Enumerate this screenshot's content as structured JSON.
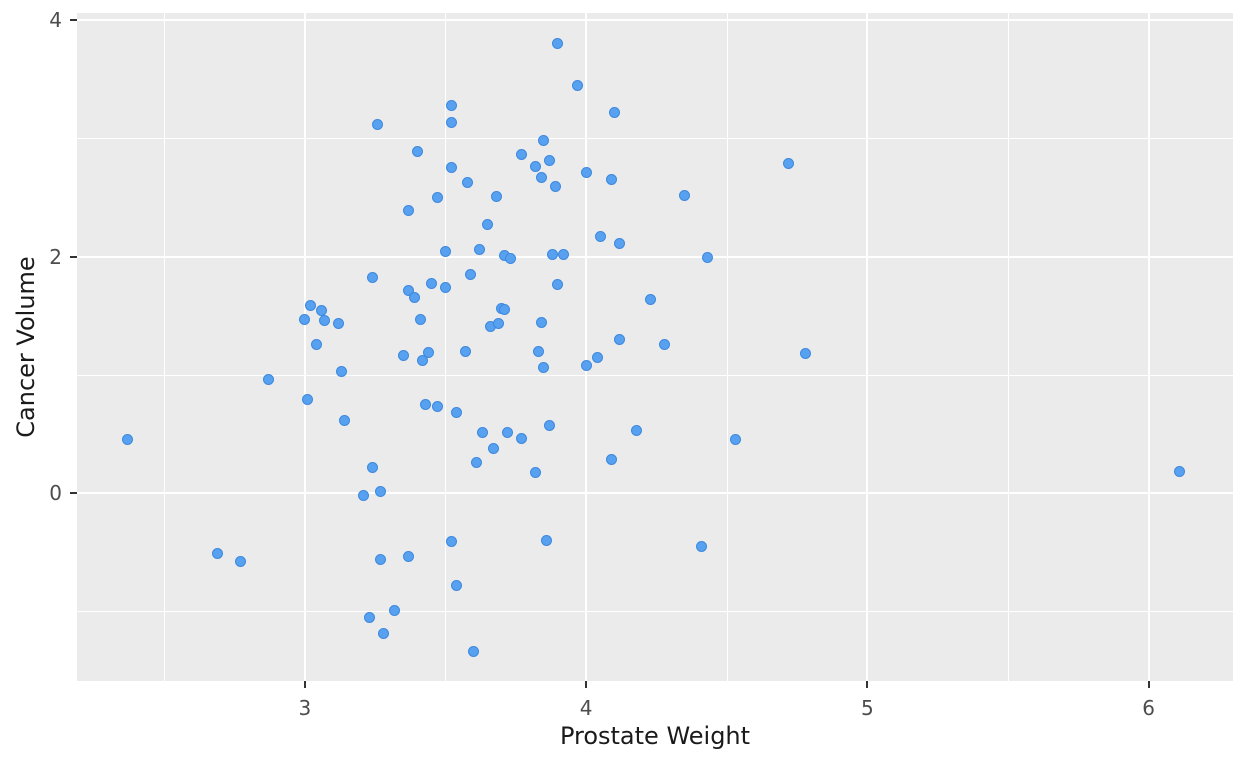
{
  "figure": {
    "xlabel": "Prostate Weight",
    "ylabel": "Cancer Volume"
  },
  "chart_data": {
    "type": "scatter",
    "title": "",
    "xlabel": "Prostate Weight",
    "ylabel": "Cancer Volume",
    "xlim": [
      2.19,
      6.3
    ],
    "ylim": [
      -1.59,
      4.06
    ],
    "x_major_ticks": [
      3,
      4,
      5,
      6
    ],
    "y_major_ticks": [
      0,
      2,
      4
    ],
    "x_minor_ticks": [
      2.5,
      3.5,
      4.5,
      5.5
    ],
    "y_minor_ticks": [
      -1,
      1,
      3
    ],
    "grid": true,
    "legend": false,
    "style": {
      "panel_bg": "#ebebeb",
      "grid_color": "#ffffff",
      "point_fill": "#57a1f0",
      "point_edge": "#3d88dd",
      "tick_label_color": "#4d4d4d",
      "axis_label_color": "#1a1a1a"
    },
    "points": [
      [
        3.26,
        3.12
      ],
      [
        3.9,
        3.8
      ],
      [
        3.97,
        3.45
      ],
      [
        3.52,
        3.28
      ],
      [
        4.1,
        3.22
      ],
      [
        3.52,
        3.13
      ],
      [
        3.85,
        2.98
      ],
      [
        3.4,
        2.89
      ],
      [
        3.77,
        2.86
      ],
      [
        3.87,
        2.81
      ],
      [
        3.52,
        2.75
      ],
      [
        3.82,
        2.76
      ],
      [
        3.84,
        2.67
      ],
      [
        4.0,
        2.71
      ],
      [
        3.89,
        2.59
      ],
      [
        4.09,
        2.65
      ],
      [
        3.58,
        2.63
      ],
      [
        3.68,
        2.51
      ],
      [
        4.35,
        2.52
      ],
      [
        3.47,
        2.5
      ],
      [
        3.37,
        2.39
      ],
      [
        3.65,
        2.27
      ],
      [
        4.72,
        2.79
      ],
      [
        3.24,
        1.82
      ],
      [
        3.02,
        1.59
      ],
      [
        3.06,
        1.54
      ],
      [
        3.0,
        1.47
      ],
      [
        3.07,
        1.46
      ],
      [
        3.12,
        1.43
      ],
      [
        3.04,
        1.26
      ],
      [
        3.13,
        1.03
      ],
      [
        2.87,
        0.96
      ],
      [
        3.01,
        0.79
      ],
      [
        3.14,
        0.61
      ],
      [
        2.37,
        0.45
      ],
      [
        4.05,
        2.17
      ],
      [
        4.12,
        2.11
      ],
      [
        3.5,
        2.04
      ],
      [
        3.62,
        2.06
      ],
      [
        3.71,
        2.01
      ],
      [
        3.73,
        1.98
      ],
      [
        3.88,
        2.02
      ],
      [
        3.92,
        2.02
      ],
      [
        4.43,
        1.99
      ],
      [
        3.59,
        1.85
      ],
      [
        3.45,
        1.77
      ],
      [
        3.5,
        1.74
      ],
      [
        3.37,
        1.71
      ],
      [
        3.39,
        1.65
      ],
      [
        3.9,
        1.76
      ],
      [
        3.41,
        1.47
      ],
      [
        3.7,
        1.56
      ],
      [
        3.71,
        1.55
      ],
      [
        3.66,
        1.41
      ],
      [
        3.69,
        1.43
      ],
      [
        3.84,
        1.44
      ],
      [
        4.23,
        1.64
      ],
      [
        4.12,
        1.3
      ],
      [
        4.28,
        1.26
      ],
      [
        3.57,
        1.2
      ],
      [
        3.83,
        1.2
      ],
      [
        4.04,
        1.15
      ],
      [
        3.35,
        1.16
      ],
      [
        3.44,
        1.19
      ],
      [
        3.42,
        1.12
      ],
      [
        4.0,
        1.08
      ],
      [
        3.85,
        1.06
      ],
      [
        3.43,
        0.75
      ],
      [
        3.47,
        0.73
      ],
      [
        3.54,
        0.68
      ],
      [
        3.87,
        0.57
      ],
      [
        3.63,
        0.51
      ],
      [
        3.72,
        0.51
      ],
      [
        3.77,
        0.46
      ],
      [
        4.18,
        0.53
      ],
      [
        3.67,
        0.38
      ],
      [
        4.78,
        1.18
      ],
      [
        4.53,
        0.45
      ],
      [
        3.24,
        0.22
      ],
      [
        3.21,
        -0.02
      ],
      [
        3.27,
        0.01
      ],
      [
        2.69,
        -0.51
      ],
      [
        2.77,
        -0.58
      ],
      [
        3.27,
        -0.56
      ],
      [
        3.32,
        -0.99
      ],
      [
        3.23,
        -1.05
      ],
      [
        3.28,
        -1.19
      ],
      [
        3.61,
        0.26
      ],
      [
        3.82,
        0.17
      ],
      [
        4.09,
        0.28
      ],
      [
        3.52,
        -0.41
      ],
      [
        3.86,
        -0.4
      ],
      [
        3.37,
        -0.54
      ],
      [
        4.41,
        -0.45
      ],
      [
        3.54,
        -0.78
      ],
      [
        3.6,
        -1.34
      ],
      [
        6.11,
        0.18
      ]
    ]
  }
}
